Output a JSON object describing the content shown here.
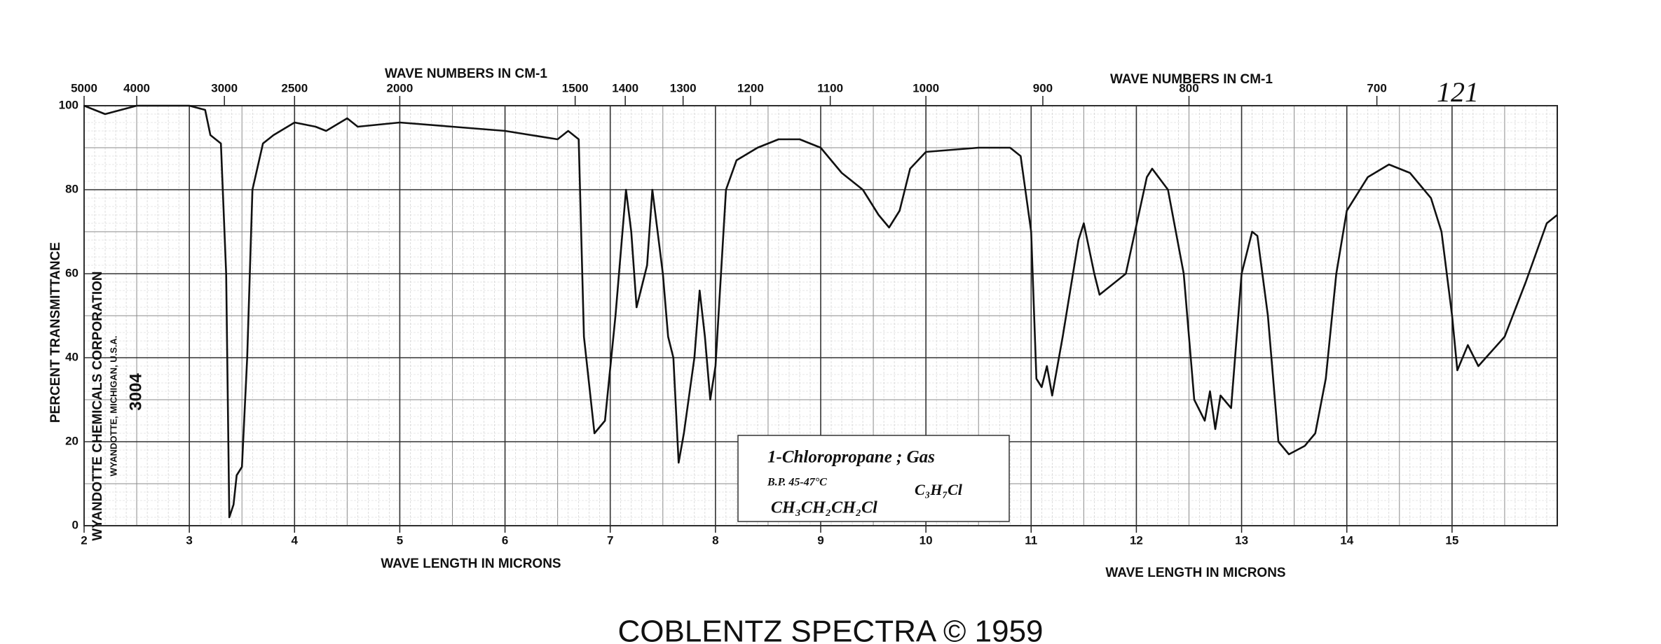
{
  "chart_data": {
    "type": "line",
    "x2label": "WAVE NUMBERS IN CM-1",
    "xlabel": "WAVE LENGTH IN MICRONS",
    "ylabel": "PERCENT TRANSMITTANCE",
    "page_number": "121",
    "stamp": [
      "WYANDOTTE CHEMICALS CORPORATION",
      "WYANDOTTE, MICHIGAN, U.S.A.",
      "3004"
    ],
    "annotations": [
      "1-Chloropropane ; Gas",
      "B.P. 45-47°C",
      "C₃H₇Cl",
      "CH₃CH₂CH₂Cl"
    ],
    "footer": "COBLENTZ SPECTRA © 1959",
    "color": "#111111",
    "grid": true,
    "xlim": [
      2,
      16
    ],
    "ylim": [
      0,
      100
    ],
    "xticks": [
      2,
      3,
      4,
      5,
      6,
      7,
      8,
      9,
      10,
      11,
      12,
      13,
      14,
      15
    ],
    "yticks": [
      0,
      20,
      40,
      60,
      80,
      100
    ],
    "x2ticks": [
      5000,
      4000,
      3000,
      2500,
      2000,
      1500,
      1400,
      1300,
      1200,
      1100,
      1000,
      900,
      800,
      700
    ],
    "x": [
      2.0,
      2.2,
      2.5,
      3.0,
      3.15,
      3.2,
      3.3,
      3.35,
      3.38,
      3.42,
      3.45,
      3.5,
      3.55,
      3.6,
      3.7,
      3.8,
      4.0,
      4.2,
      4.3,
      4.5,
      4.6,
      5.0,
      5.5,
      6.0,
      6.5,
      6.6,
      6.7,
      6.75,
      6.85,
      6.95,
      7.05,
      7.15,
      7.2,
      7.25,
      7.3,
      7.35,
      7.4,
      7.45,
      7.5,
      7.55,
      7.6,
      7.65,
      7.7,
      7.8,
      7.85,
      7.9,
      7.95,
      8.0,
      8.1,
      8.2,
      8.4,
      8.6,
      8.8,
      9.0,
      9.2,
      9.4,
      9.55,
      9.65,
      9.75,
      9.85,
      10.0,
      10.5,
      10.8,
      10.9,
      11.0,
      11.05,
      11.1,
      11.15,
      11.2,
      11.3,
      11.45,
      11.5,
      11.6,
      11.65,
      11.8,
      11.9,
      12.1,
      12.15,
      12.3,
      12.45,
      12.55,
      12.65,
      12.7,
      12.75,
      12.8,
      12.9,
      13.0,
      13.1,
      13.15,
      13.25,
      13.35,
      13.45,
      13.6,
      13.7,
      13.8,
      13.9,
      14.0,
      14.2,
      14.4,
      14.6,
      14.8,
      14.9,
      15.0,
      15.05,
      15.1,
      15.15,
      15.25,
      15.5,
      15.7,
      15.9,
      16.0
    ],
    "values": [
      100,
      98,
      100,
      100,
      99,
      93,
      91,
      60,
      2,
      5,
      12,
      14,
      40,
      80,
      91,
      93,
      96,
      95,
      94,
      97,
      95,
      96,
      95,
      94,
      92,
      94,
      92,
      45,
      22,
      25,
      50,
      80,
      70,
      52,
      57,
      62,
      80,
      70,
      60,
      45,
      40,
      15,
      22,
      40,
      56,
      45,
      30,
      38,
      80,
      87,
      90,
      92,
      92,
      90,
      84,
      80,
      74,
      71,
      75,
      85,
      89,
      90,
      90,
      88,
      70,
      35,
      33,
      38,
      31,
      45,
      68,
      72,
      60,
      55,
      58,
      60,
      83,
      85,
      80,
      60,
      30,
      25,
      32,
      23,
      31,
      28,
      60,
      70,
      69,
      50,
      20,
      17,
      19,
      22,
      35,
      60,
      75,
      83,
      86,
      84,
      78,
      70,
      50,
      37,
      40,
      43,
      38,
      45,
      58,
      72,
      74
    ]
  }
}
